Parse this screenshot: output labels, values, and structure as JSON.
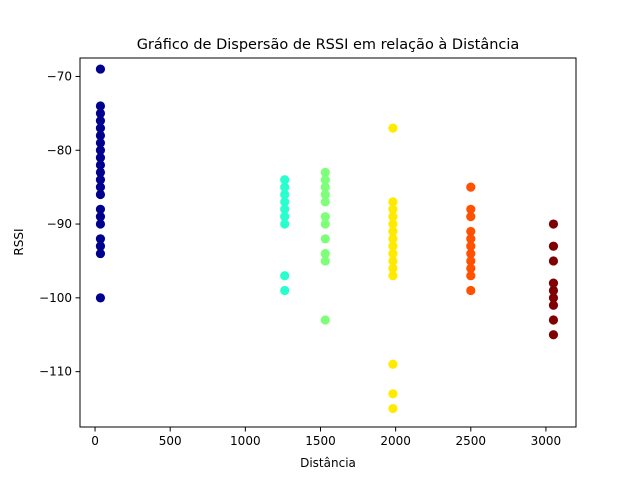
{
  "chart_data": {
    "type": "scatter",
    "title": "Gráfico de Dispersão de RSSI em relação à Distância",
    "xlabel": "Distância",
    "ylabel": "RSSI",
    "xlim": [
      -100,
      3200
    ],
    "ylim": [
      -117.5,
      -67.5
    ],
    "xticks": [
      0,
      500,
      1000,
      1500,
      2000,
      2500,
      3000
    ],
    "xtick_labels": [
      "0",
      "500",
      "1000",
      "1500",
      "2000",
      "2500",
      "3000"
    ],
    "yticks": [
      -110,
      -100,
      -90,
      -80,
      -70
    ],
    "ytick_labels": [
      "−110",
      "−100",
      "−90",
      "−80",
      "−70"
    ],
    "grid": false,
    "legend": "none",
    "colormap": "jet",
    "series": [
      {
        "color": "#00008f",
        "points": [
          [
            36,
            -69
          ],
          [
            36,
            -74
          ],
          [
            36,
            -75
          ],
          [
            36,
            -76
          ],
          [
            36,
            -77
          ],
          [
            36,
            -78
          ],
          [
            36,
            -79
          ],
          [
            36,
            -80
          ],
          [
            36,
            -81
          ],
          [
            36,
            -82
          ],
          [
            36,
            -83
          ],
          [
            36,
            -84
          ],
          [
            36,
            -85
          ],
          [
            36,
            -86
          ],
          [
            36,
            -88
          ],
          [
            36,
            -89
          ],
          [
            36,
            -90
          ],
          [
            36,
            -92
          ],
          [
            36,
            -93
          ],
          [
            36,
            -94
          ],
          [
            36,
            -100
          ]
        ]
      },
      {
        "color": "#29ffce",
        "points": [
          [
            1262,
            -84
          ],
          [
            1262,
            -85
          ],
          [
            1262,
            -86
          ],
          [
            1262,
            -87
          ],
          [
            1262,
            -88
          ],
          [
            1262,
            -89
          ],
          [
            1262,
            -90
          ],
          [
            1262,
            -97
          ],
          [
            1262,
            -99
          ]
        ]
      },
      {
        "color": "#7dff7a",
        "points": [
          [
            1532,
            -83
          ],
          [
            1532,
            -84
          ],
          [
            1532,
            -85
          ],
          [
            1532,
            -86
          ],
          [
            1532,
            -87
          ],
          [
            1532,
            -89
          ],
          [
            1532,
            -90
          ],
          [
            1532,
            -92
          ],
          [
            1532,
            -94
          ],
          [
            1532,
            -95
          ],
          [
            1532,
            -103
          ]
        ]
      },
      {
        "color": "#ffea00",
        "points": [
          [
            1982,
            -77
          ],
          [
            1982,
            -87
          ],
          [
            1982,
            -88
          ],
          [
            1982,
            -89
          ],
          [
            1982,
            -90
          ],
          [
            1982,
            -91
          ],
          [
            1982,
            -92
          ],
          [
            1982,
            -93
          ],
          [
            1982,
            -94
          ],
          [
            1982,
            -95
          ],
          [
            1982,
            -96
          ],
          [
            1982,
            -97
          ],
          [
            1982,
            -109
          ],
          [
            1982,
            -113
          ],
          [
            1982,
            -115
          ]
        ]
      },
      {
        "color": "#ff5100",
        "points": [
          [
            2500,
            -85
          ],
          [
            2500,
            -88
          ],
          [
            2500,
            -89
          ],
          [
            2500,
            -91
          ],
          [
            2500,
            -92
          ],
          [
            2500,
            -93
          ],
          [
            2500,
            -94
          ],
          [
            2500,
            -95
          ],
          [
            2500,
            -96
          ],
          [
            2500,
            -97
          ],
          [
            2500,
            -99
          ]
        ]
      },
      {
        "color": "#7f0000",
        "points": [
          [
            3050,
            -90
          ],
          [
            3050,
            -93
          ],
          [
            3050,
            -95
          ],
          [
            3050,
            -98
          ],
          [
            3050,
            -99
          ],
          [
            3050,
            -100
          ],
          [
            3050,
            -101
          ],
          [
            3050,
            -103
          ],
          [
            3050,
            -105
          ]
        ]
      }
    ]
  }
}
